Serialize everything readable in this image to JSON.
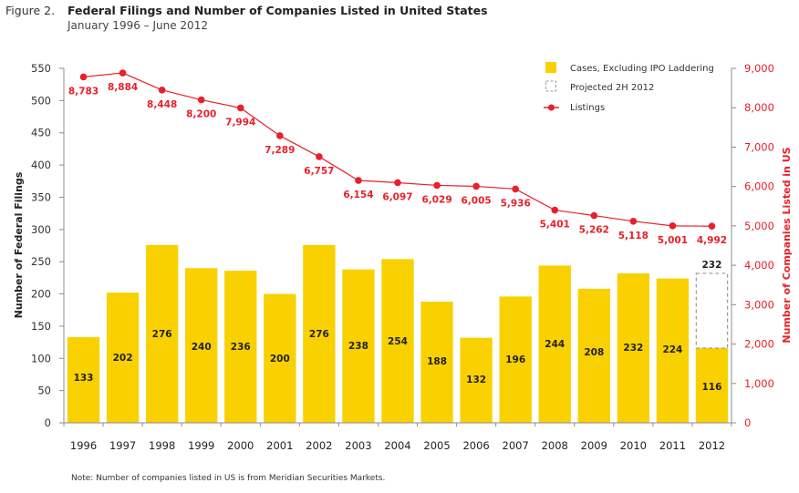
{
  "figure": {
    "label": "Figure 2.",
    "title": "Federal Filings and Number of Companies Listed in United States",
    "subtitle": "January 1996 – June 2012",
    "note": "Note: Number of companies listed in US is from Meridian Securities Markets."
  },
  "chart_data": {
    "type": "bar",
    "title": "Federal Filings and Number of Companies Listed in United States",
    "subtitle": "January 1996 – June 2012",
    "categories": [
      "1996",
      "1997",
      "1998",
      "1999",
      "2000",
      "2001",
      "2002",
      "2003",
      "2004",
      "2005",
      "2006",
      "2007",
      "2008",
      "2009",
      "2010",
      "2011",
      "2012"
    ],
    "ylabel": "Number of Federal Filings",
    "y2label": "Number of Companies Listed in US",
    "ylim": [
      0,
      550
    ],
    "y2lim": [
      0,
      9000
    ],
    "yticks": [
      "0",
      "50",
      "100",
      "150",
      "200",
      "250",
      "300",
      "350",
      "400",
      "450",
      "500",
      "550"
    ],
    "y2ticks": [
      "0",
      "1,000",
      "2,000",
      "3,000",
      "4,000",
      "5,000",
      "6,000",
      "7,000",
      "8,000",
      "9,000"
    ],
    "grid": false,
    "legend_position": "top-right",
    "colors": {
      "bars": "#f9d100",
      "line": "#e8202a",
      "projected": "#999999"
    },
    "series": [
      {
        "name": "Cases, Excluding IPO Laddering",
        "type": "bar",
        "axis": "left",
        "values": [
          133,
          202,
          276,
          240,
          236,
          200,
          276,
          238,
          254,
          188,
          132,
          196,
          244,
          208,
          232,
          224,
          116
        ],
        "labels": [
          "133",
          "202",
          "276",
          "240",
          "236",
          "200",
          "276",
          "238",
          "254",
          "188",
          "132",
          "196",
          "244",
          "208",
          "232",
          "224",
          "116"
        ]
      },
      {
        "name": "Projected 2H 2012",
        "type": "bar-outline-dashed",
        "axis": "left",
        "category": "2012",
        "total": 232,
        "label": "232"
      },
      {
        "name": "Listings",
        "type": "line",
        "axis": "right",
        "values": [
          8783,
          8884,
          8448,
          8200,
          7994,
          7289,
          6757,
          6154,
          6097,
          6029,
          6005,
          5936,
          5401,
          5262,
          5118,
          5001,
          4992
        ],
        "labels": [
          "8,783",
          "8,884",
          "8,448",
          "8,200",
          "7,994",
          "7,289",
          "6,757",
          "6,154",
          "6,097",
          "6,029",
          "6,005",
          "5,936",
          "5,401",
          "5,262",
          "5,118",
          "5,001",
          "4,992"
        ]
      }
    ],
    "legend": [
      {
        "label": "Cases, Excluding IPO Laddering",
        "symbol": "yellow-square"
      },
      {
        "label": "Projected 2H 2012",
        "symbol": "dashed-square"
      },
      {
        "label": "Listings",
        "symbol": "red-line-dot"
      }
    ]
  }
}
